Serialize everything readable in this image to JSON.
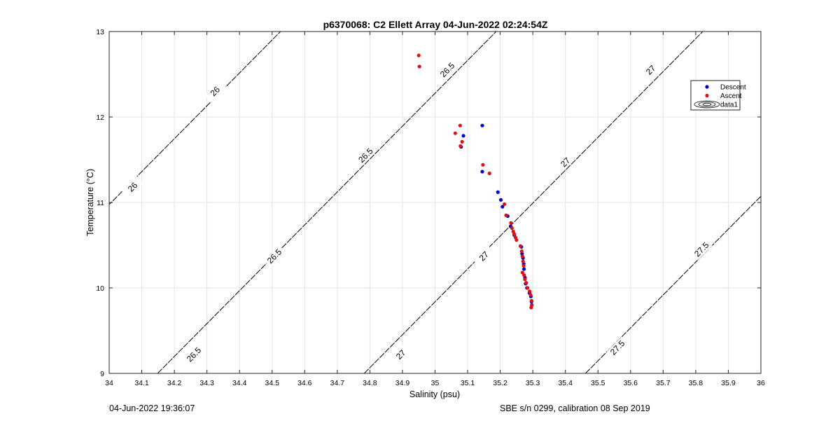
{
  "chart_data": {
    "type": "scatter",
    "title": "p6370068: C2 Ellett Array 04-Jun-2022 02:24:54Z",
    "xlabel": "Salinity (psu)",
    "ylabel": "Temperature (°C)",
    "xlim": [
      34,
      36
    ],
    "ylim": [
      9,
      13
    ],
    "x_ticks": [
      "34",
      "34.1",
      "34.2",
      "34.3",
      "34.4",
      "34.5",
      "34.6",
      "34.7",
      "34.8",
      "34.9",
      "35",
      "35.1",
      "35.2",
      "35.3",
      "35.4",
      "35.5",
      "35.6",
      "35.7",
      "35.8",
      "35.9",
      "36"
    ],
    "y_ticks": [
      "9",
      "10",
      "11",
      "12",
      "13"
    ],
    "grid": true,
    "legend_position": "top-right",
    "legend": [
      "Descent",
      "Ascent",
      "data1"
    ],
    "series": [
      {
        "name": "Descent",
        "color": "#0000cc",
        "points": [
          [
            35.145,
            11.9
          ],
          [
            35.087,
            11.78
          ],
          [
            35.08,
            11.65
          ],
          [
            35.145,
            11.36
          ],
          [
            35.193,
            11.12
          ],
          [
            35.202,
            11.03
          ],
          [
            35.207,
            10.95
          ],
          [
            35.223,
            10.84
          ],
          [
            35.232,
            10.72
          ],
          [
            35.243,
            10.62
          ],
          [
            35.265,
            10.48
          ],
          [
            35.267,
            10.4
          ],
          [
            35.27,
            10.35
          ],
          [
            35.272,
            10.28
          ],
          [
            35.273,
            10.22
          ],
          [
            35.276,
            10.12
          ],
          [
            35.278,
            10.05
          ],
          [
            35.282,
            10.0
          ],
          [
            35.29,
            9.94
          ],
          [
            35.294,
            9.9
          ],
          [
            35.296,
            9.84
          ],
          [
            35.297,
            9.8
          ]
        ]
      },
      {
        "name": "Ascent",
        "color": "#dd1111",
        "points": [
          [
            34.95,
            12.72
          ],
          [
            34.952,
            12.59
          ],
          [
            35.077,
            11.9
          ],
          [
            35.062,
            11.81
          ],
          [
            35.083,
            11.71
          ],
          [
            35.078,
            11.66
          ],
          [
            35.147,
            11.44
          ],
          [
            35.167,
            11.34
          ],
          [
            35.213,
            10.98
          ],
          [
            35.218,
            10.85
          ],
          [
            35.233,
            10.76
          ],
          [
            35.236,
            10.7
          ],
          [
            35.24,
            10.66
          ],
          [
            35.243,
            10.63
          ],
          [
            35.247,
            10.59
          ],
          [
            35.25,
            10.56
          ],
          [
            35.262,
            10.49
          ],
          [
            35.266,
            10.43
          ],
          [
            35.268,
            10.37
          ],
          [
            35.27,
            10.31
          ],
          [
            35.272,
            10.26
          ],
          [
            35.268,
            10.18
          ],
          [
            35.273,
            10.15
          ],
          [
            35.276,
            10.1
          ],
          [
            35.28,
            10.06
          ],
          [
            35.284,
            10.0
          ],
          [
            35.29,
            9.96
          ],
          [
            35.293,
            9.92
          ],
          [
            35.296,
            9.85
          ],
          [
            35.297,
            9.8
          ],
          [
            35.295,
            9.77
          ]
        ]
      }
    ],
    "isopycnals": [
      {
        "value": "26",
        "labels": [
          [
            34.072,
            11.18
          ],
          [
            34.325,
            12.3
          ]
        ]
      },
      {
        "value": "26.5",
        "labels": [
          [
            34.26,
            9.22
          ],
          [
            34.507,
            10.37
          ],
          [
            34.787,
            11.55
          ],
          [
            35.038,
            12.55
          ]
        ]
      },
      {
        "value": "27",
        "labels": [
          [
            34.895,
            9.22
          ],
          [
            35.15,
            10.37
          ],
          [
            35.4,
            11.47
          ],
          [
            35.662,
            12.55
          ]
        ]
      },
      {
        "value": "27.5",
        "labels": [
          [
            35.56,
            9.3
          ],
          [
            35.818,
            10.45
          ]
        ]
      }
    ]
  },
  "footer": {
    "left": "04-Jun-2022 19:36:07",
    "right": "SBE s/n 0299, calibration 08 Sep 2019"
  }
}
